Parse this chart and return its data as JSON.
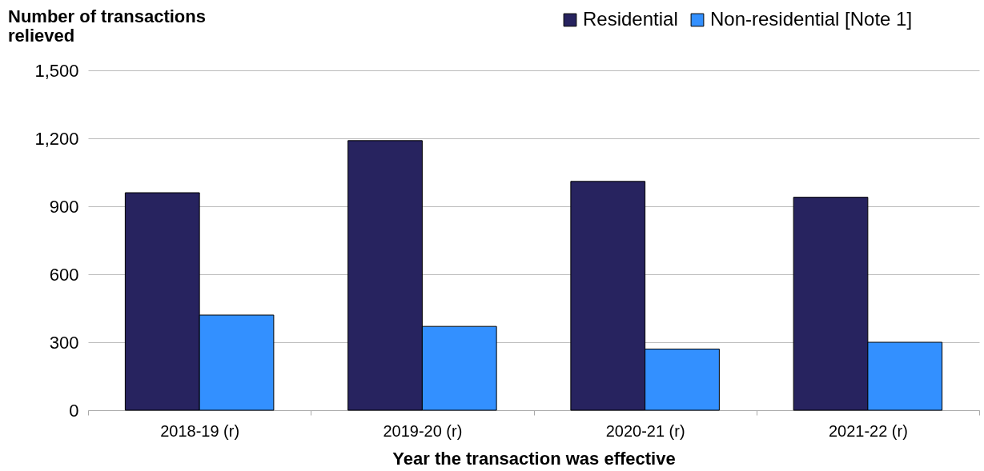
{
  "chart_data": {
    "type": "bar",
    "ylabel": "Number of transactions\nrelieved",
    "xlabel": "Year the transaction was effective",
    "categories": [
      "2018-19 (r)",
      "2019-20 (r)",
      "2020-21 (r)",
      "2021-22 (r)"
    ],
    "series": [
      {
        "name": "Residential",
        "color": "#27235f",
        "values": [
          960,
          1190,
          1010,
          940
        ]
      },
      {
        "name": "Non-residential [Note 1]",
        "color": "#3390ff",
        "values": [
          420,
          370,
          270,
          300
        ]
      }
    ],
    "ylim": [
      0,
      1500
    ],
    "yticks": [
      0,
      300,
      600,
      900,
      {
        "value": 1200,
        "label": "1,200"
      },
      {
        "value": 1500,
        "label": "1,500"
      }
    ],
    "grid": "y",
    "legend": "top right"
  }
}
